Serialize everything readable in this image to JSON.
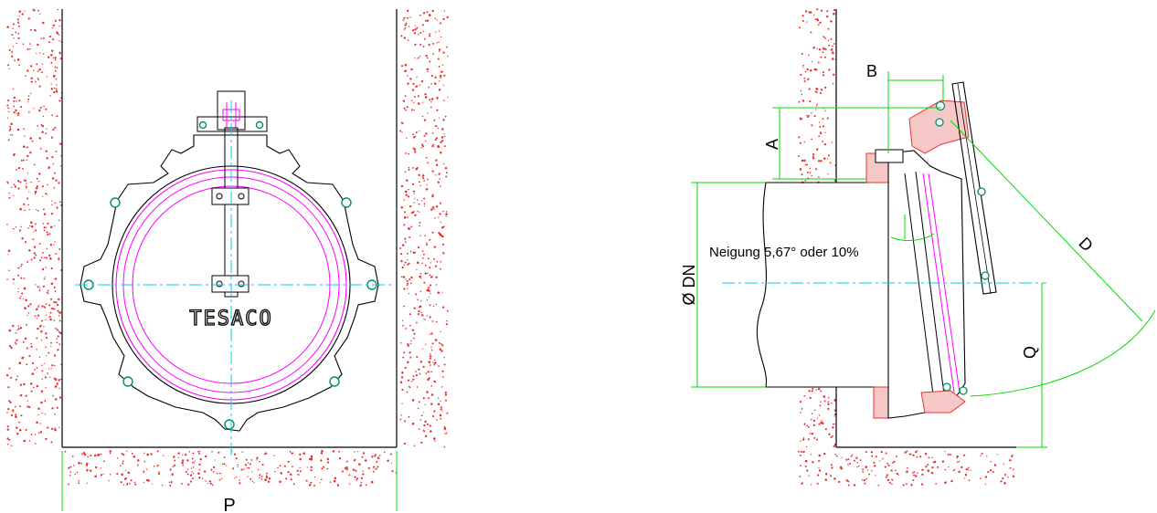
{
  "front_view": {
    "brand": "TESACO",
    "dimension_p": "P"
  },
  "side_view": {
    "dimension_a": "A",
    "dimension_b": "B",
    "dimension_d": "D",
    "dimension_q": "Q",
    "dimension_dn": "Ø DN",
    "slope_note": "Neigung 5,67° oder 10%"
  },
  "colors": {
    "outline": "#000000",
    "seal": "#ff00ff",
    "dimension": "#00dd00",
    "centerline": "#00c8ff",
    "soil": "#e83030",
    "bolt": "#009060"
  }
}
